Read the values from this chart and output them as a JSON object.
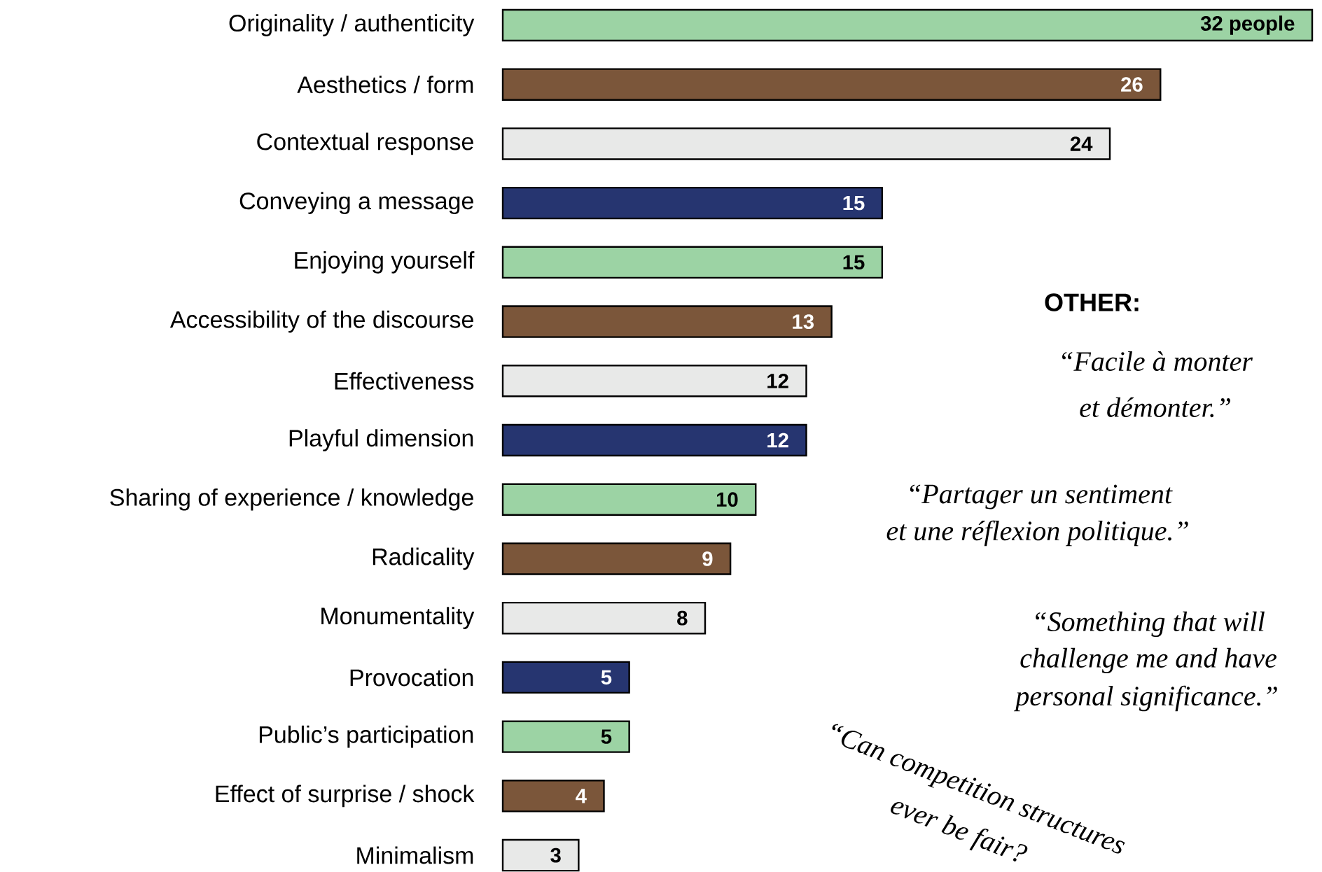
{
  "chart_data": {
    "type": "bar",
    "orientation": "horizontal",
    "categories": [
      "Originality / authenticity",
      "Aesthetics / form",
      "Contextual response",
      "Conveying a message",
      "Enjoying yourself",
      "Accessibility of the discourse",
      "Effectiveness",
      "Playful dimension",
      "Sharing of experience / knowledge",
      "Radicality",
      "Monumentality",
      "Provocation",
      "Public’s participation",
      "Effect of surprise / shock",
      "Minimalism"
    ],
    "values": [
      32,
      26,
      24,
      15,
      15,
      13,
      12,
      12,
      10,
      9,
      8,
      5,
      5,
      4,
      3
    ],
    "colors": [
      "#9cd3a4",
      "#7b563a",
      "#e8e9e8",
      "#263570",
      "#9cd3a4",
      "#7b563a",
      "#e8e9e8",
      "#263570",
      "#9cd3a4",
      "#7b563a",
      "#e8e9e8",
      "#263570",
      "#9cd3a4",
      "#7b563a",
      "#e8e9e8"
    ],
    "value_labels": [
      "32 people",
      "26",
      "24",
      "15",
      "15",
      "13",
      "12",
      "12",
      "10",
      "9",
      "8",
      "5",
      "5",
      "4",
      "3"
    ],
    "annotations": [
      "OTHER:",
      "“Facile à monter",
      "et démonter.”",
      "“Partager un sentiment",
      "et une réflexion politique.”",
      "“Something that will",
      "challenge me and have",
      "personal significance.”",
      "“Can competition structures",
      "ever be fair?"
    ]
  }
}
